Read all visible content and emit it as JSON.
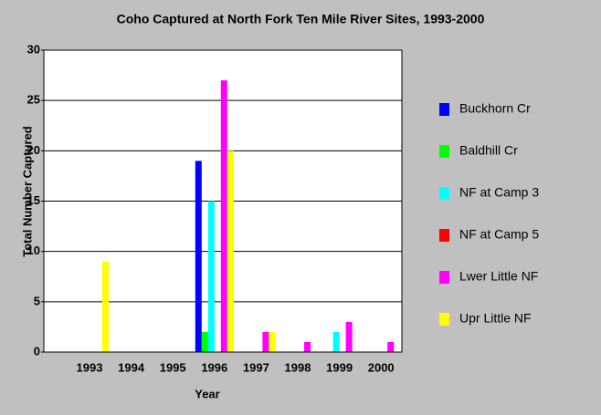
{
  "chart_data": {
    "type": "bar",
    "title": "Coho Captured at North Fork Ten Mile River Sites, 1993-2000",
    "x_label": "Year",
    "y_label": "Total Number Captured",
    "categories": [
      "1993",
      "1994",
      "1995",
      "1996",
      "1997",
      "1998",
      "1999",
      "2000"
    ],
    "series": [
      {
        "name": "Buckhorn Cr",
        "color": "#0000ff",
        "values": [
          0,
          0,
          0,
          19,
          0,
          0,
          0,
          0
        ]
      },
      {
        "name": "Baldhill Cr",
        "color": "#00ff00",
        "values": [
          0,
          0,
          0,
          2,
          0,
          0,
          0,
          0
        ]
      },
      {
        "name": "NF at Camp 3",
        "color": "#00ffff",
        "values": [
          0,
          0,
          0,
          15,
          0,
          0,
          2,
          0
        ]
      },
      {
        "name": "NF at Camp 5",
        "color": "#ff0000",
        "values": [
          0,
          0,
          0,
          0,
          0,
          0,
          0,
          0
        ]
      },
      {
        "name": "Lwer Little NF",
        "color": "#ff00ff",
        "values": [
          0,
          0,
          0,
          27,
          2,
          1,
          3,
          1
        ]
      },
      {
        "name": "Upr Little NF",
        "color": "#ffff00",
        "values": [
          9,
          0,
          0,
          20,
          2,
          0,
          0,
          0
        ]
      }
    ],
    "ylim": [
      0,
      30
    ],
    "yticks": [
      0,
      5,
      10,
      15,
      20,
      25,
      30
    ],
    "grid": true,
    "legend": "right"
  }
}
